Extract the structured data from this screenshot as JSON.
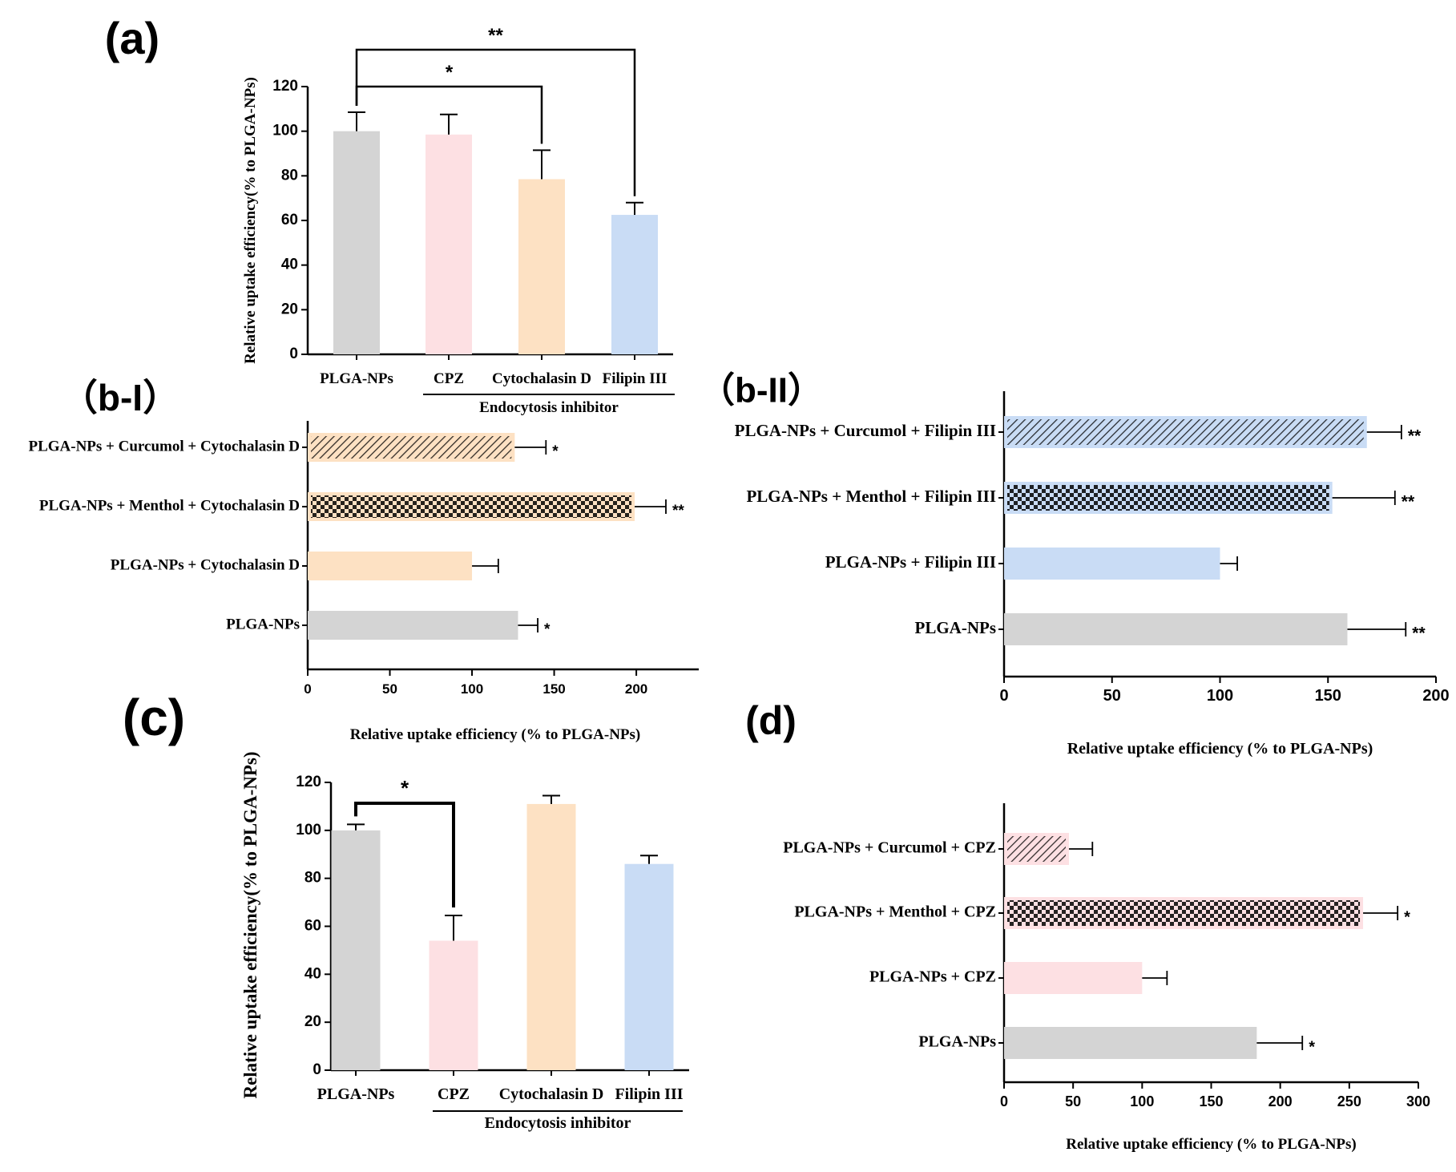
{
  "colors": {
    "gray": "#d4d4d4",
    "pink": "#fde0e3",
    "peach": "#fde1c3",
    "blue": "#c9dcf5",
    "ink": "#000000"
  },
  "chart_data": [
    {
      "id": "a",
      "panel_label": "(a)",
      "type": "bar",
      "orientation": "vertical",
      "categories": [
        "PLGA-NPs",
        "CPZ",
        "Cytochalasin D",
        "Filipin III"
      ],
      "values": [
        100,
        98.5,
        78.5,
        62.5
      ],
      "errors": [
        8.5,
        9,
        13,
        5.5
      ],
      "colors": [
        "gray",
        "pink",
        "peach",
        "blue"
      ],
      "ylabel": "Relative uptake efficiency(% to PLGA-NPs)",
      "ylim": [
        0,
        120
      ],
      "yticks": [
        0,
        20,
        40,
        60,
        80,
        100,
        120
      ],
      "group_label": "Endocytosis inhibitor",
      "significance": [
        {
          "from": 0,
          "to": 2,
          "label": "*"
        },
        {
          "from": 0,
          "to": 3,
          "label": "**"
        }
      ]
    },
    {
      "id": "b1",
      "panel_label": "（b-I）",
      "type": "bar",
      "orientation": "horizontal",
      "categories": [
        "PLGA-NPs + Curcumol + Cytochalasin D",
        "PLGA-NPs + Menthol + Cytochalasin D",
        "PLGA-NPs + Cytochalasin D",
        "PLGA-NPs"
      ],
      "values": [
        126,
        199,
        100,
        128
      ],
      "errors": [
        19,
        19,
        16,
        12
      ],
      "colors": [
        "peach",
        "peach",
        "peach",
        "gray"
      ],
      "patterns": [
        "hatch",
        "check",
        "none",
        "none"
      ],
      "marks": [
        "*",
        "**",
        "",
        "*"
      ],
      "xlabel": "Relative uptake efficiency (% to PLGA-NPs)",
      "xlim": [
        0,
        238
      ],
      "xticks": [
        0,
        50,
        100,
        150,
        200
      ]
    },
    {
      "id": "b2",
      "panel_label": "（b-II）",
      "type": "bar",
      "orientation": "horizontal",
      "categories": [
        "PLGA-NPs + Curcumol + Filipin III",
        "PLGA-NPs + Menthol + Filipin III",
        "PLGA-NPs + Filipin III",
        "PLGA-NPs"
      ],
      "values": [
        168,
        152,
        100,
        159
      ],
      "errors": [
        16,
        29,
        8,
        27
      ],
      "colors": [
        "blue",
        "blue",
        "blue",
        "gray"
      ],
      "patterns": [
        "hatch",
        "check",
        "none",
        "none"
      ],
      "marks": [
        "**",
        "**",
        "",
        "**"
      ],
      "xlabel": "Relative uptake efficiency (% to PLGA-NPs)",
      "xlim": [
        0,
        200
      ],
      "xticks": [
        0,
        50,
        100,
        150,
        200
      ]
    },
    {
      "id": "c",
      "panel_label": "(c)",
      "type": "bar",
      "orientation": "vertical",
      "categories": [
        "PLGA-NPs",
        "CPZ",
        "Cytochalasin D",
        "Filipin III"
      ],
      "values": [
        100,
        54,
        111,
        86
      ],
      "errors": [
        2.5,
        10.5,
        3.5,
        3.5
      ],
      "colors": [
        "gray",
        "pink",
        "peach",
        "blue"
      ],
      "ylabel": "Relative uptake efficiency(% to PLGA-NPs)",
      "ylim": [
        0,
        120
      ],
      "yticks": [
        0,
        20,
        40,
        60,
        80,
        100,
        120
      ],
      "group_label": "Endocytosis inhibitor",
      "significance": [
        {
          "from": 0,
          "to": 1,
          "label": "*"
        }
      ]
    },
    {
      "id": "d",
      "panel_label": "(d)",
      "type": "bar",
      "orientation": "horizontal",
      "categories": [
        "PLGA-NPs + Curcumol + CPZ",
        "PLGA-NPs + Menthol + CPZ",
        "PLGA-NPs + CPZ",
        "PLGA-NPs"
      ],
      "values": [
        47,
        260,
        100,
        183
      ],
      "errors": [
        17,
        25,
        18,
        33
      ],
      "colors": [
        "pink",
        "pink",
        "pink",
        "gray"
      ],
      "patterns": [
        "hatch",
        "check",
        "none",
        "none"
      ],
      "marks": [
        "",
        "*",
        "",
        "*"
      ],
      "xlabel": "Relative uptake efficiency (% to PLGA-NPs)",
      "xlim": [
        0,
        300
      ],
      "xticks": [
        0,
        50,
        100,
        150,
        200,
        250,
        300
      ]
    }
  ]
}
